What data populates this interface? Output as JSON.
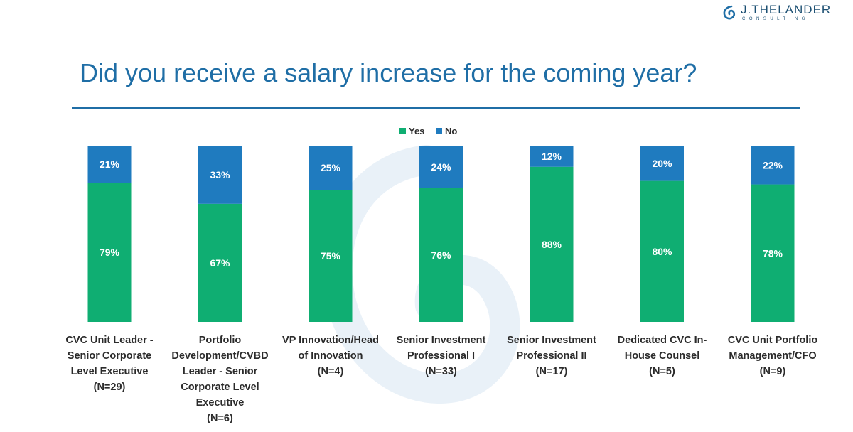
{
  "logo": {
    "name": "J.THELANDER",
    "sub": "CONSULTING",
    "icon": "spiral-logo-icon"
  },
  "title": "Did you receive a salary increase for the coming year?",
  "colors": {
    "yes": "#0fae72",
    "no": "#1f7bbf",
    "title": "#1f6ea6",
    "watermark": "#e3eef8"
  },
  "chart_data": {
    "type": "bar",
    "stacked": true,
    "title": "Did you receive a salary increase for the coming year?",
    "legend_position": "top-center",
    "ylim": [
      0,
      100
    ],
    "categories": [
      [
        "CVC Unit Leader -",
        "Senior Corporate",
        "Level Executive",
        "(N=29)"
      ],
      [
        "Portfolio",
        "Development/CVBD",
        "Leader - Senior",
        "Corporate Level",
        "Executive",
        "(N=6)"
      ],
      [
        "VP Innovation/Head",
        "of Innovation",
        "(N=4)"
      ],
      [
        "Senior Investment",
        "Professional I",
        "(N=33)"
      ],
      [
        "Senior Investment",
        "Professional II",
        "(N=17)"
      ],
      [
        "Dedicated CVC In-",
        "House Counsel",
        "(N=5)"
      ],
      [
        "CVC Unit Portfolio",
        "Management/CFO",
        "(N=9)"
      ]
    ],
    "series": [
      {
        "name": "Yes",
        "color": "#0fae72",
        "values": [
          79,
          67,
          75,
          76,
          88,
          80,
          78
        ]
      },
      {
        "name": "No",
        "color": "#1f7bbf",
        "values": [
          21,
          33,
          25,
          24,
          12,
          20,
          22
        ]
      }
    ]
  }
}
